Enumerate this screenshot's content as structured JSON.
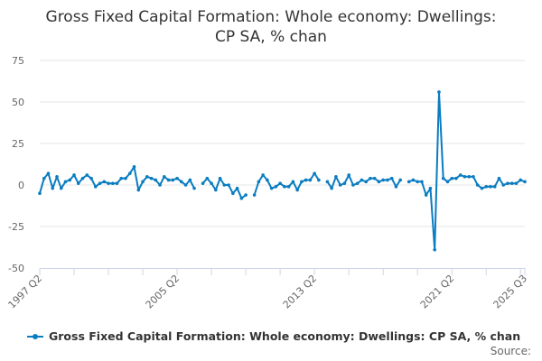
{
  "chart_data": {
    "type": "line",
    "title": "Gross Fixed Capital Formation: Whole economy: Dwellings: CP SA, % chan",
    "start": "1997 Q2",
    "end": "2025 Q3",
    "frequency": "quarterly",
    "x_tick_labels": [
      "1997 Q2",
      "2005 Q2",
      "2013 Q2",
      "2021 Q2",
      "2025 Q3"
    ],
    "x_tick_indices": [
      0,
      32,
      64,
      96,
      113
    ],
    "y_ticks": [
      75,
      50,
      25,
      0,
      -25,
      -50
    ],
    "ylim": [
      -50,
      75
    ],
    "grid": true,
    "legend_position": "bottom",
    "series": [
      {
        "name": "Gross Fixed Capital Formation: Whole economy: Dwellings: CP SA, % chan",
        "color": "#0a7cc1",
        "values": [
          -5,
          4,
          7,
          -2,
          5,
          -2,
          2,
          3,
          6,
          1,
          4,
          6,
          4,
          -1,
          1,
          2,
          1,
          1,
          1,
          4,
          4,
          7,
          11,
          -3,
          2,
          5,
          4,
          3,
          0,
          5,
          3,
          3,
          4,
          2,
          0,
          3,
          -2,
          null,
          1,
          4,
          1,
          -3,
          4,
          0,
          0,
          -5,
          -2,
          -8,
          -6,
          null,
          -6,
          2,
          6,
          3,
          -2,
          -1,
          1,
          -1,
          -1,
          2,
          -3,
          2,
          3,
          3,
          7,
          3,
          null,
          2,
          -2,
          5,
          0,
          1,
          6,
          0,
          1,
          3,
          2,
          4,
          4,
          2,
          3,
          3,
          4,
          -1,
          3,
          null,
          2,
          3,
          2,
          2,
          -6,
          -2,
          -39,
          56,
          4,
          2,
          4,
          4,
          6,
          5,
          5,
          5,
          0,
          -2,
          -1,
          -1,
          -1,
          4,
          0,
          1,
          1,
          1,
          3,
          2
        ]
      }
    ]
  },
  "source_label": "Source:"
}
